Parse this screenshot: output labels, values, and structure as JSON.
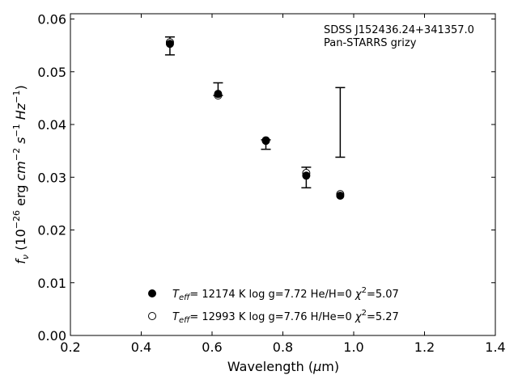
{
  "chart_data": {
    "type": "scatter",
    "annotation": [
      "SDSS J152436.24+341357.0",
      "Pan-STARRS grizy"
    ],
    "xlabel": {
      "main": "Wavelength (",
      "mu": "μ",
      "unit": "m)"
    },
    "ylabel": {
      "prefix": "f",
      "prefix_sub": "ν",
      "paren_open": " (10",
      "exp1": "−26",
      "erg": " erg ",
      "cm": "cm",
      "exp2": "−2",
      "s": " s",
      "exp3": "−1",
      "hz": " Hz",
      "exp4": "−1",
      "paren_close": ")"
    },
    "xlim": [
      0.2,
      1.4
    ],
    "ylim": [
      0.0,
      0.061
    ],
    "xticks": [
      "0.2",
      "0.4",
      "0.6",
      "0.8",
      "1.0",
      "1.2",
      "1.4"
    ],
    "yticks": [
      "0.00",
      "0.01",
      "0.02",
      "0.03",
      "0.04",
      "0.05",
      "0.06"
    ],
    "grid": false,
    "legend_position": "bottom-center",
    "observed": [
      {
        "x": 0.481,
        "y": 0.0549,
        "yerr_low": 0.0532,
        "yerr_high": 0.0566
      },
      {
        "x": 0.617,
        "y": 0.0464,
        "yerr_low": 0.0455,
        "yerr_high": 0.0479
      },
      {
        "x": 0.752,
        "y": 0.0362,
        "yerr_low": 0.0353,
        "yerr_high": 0.0371
      },
      {
        "x": 0.866,
        "y": 0.0299,
        "yerr_low": 0.028,
        "yerr_high": 0.0319
      },
      {
        "x": 0.962,
        "y": 0.0404,
        "yerr_low": 0.0338,
        "yerr_high": 0.047
      }
    ],
    "series": [
      {
        "marker": "filled",
        "legend": {
          "teff_sym": "T",
          "teff_sub": "eff",
          "text": "= 12174 K  log g=7.72  He/H=0  ",
          "chi": "χ",
          "chi_exp": "2",
          "chi_val": "=5.07"
        },
        "x": [
          0.481,
          0.617,
          0.752,
          0.866,
          0.962
        ],
        "y": [
          0.0553,
          0.0458,
          0.0369,
          0.0303,
          0.0265
        ]
      },
      {
        "marker": "open",
        "legend": {
          "teff_sym": "T",
          "teff_sub": "eff",
          "text": "= 12993 K  log g=7.76  H/He=0  ",
          "chi": "χ",
          "chi_exp": "2",
          "chi_val": "=5.27"
        },
        "x": [
          0.481,
          0.617,
          0.752,
          0.866,
          0.962
        ],
        "y": [
          0.0556,
          0.0455,
          0.037,
          0.0308,
          0.0268
        ]
      }
    ]
  }
}
